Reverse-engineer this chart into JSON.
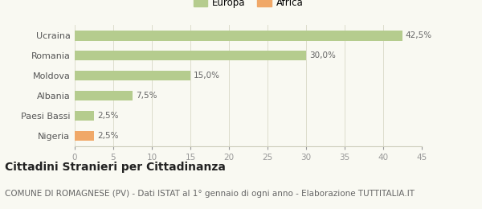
{
  "categories": [
    "Nigeria",
    "Paesi Bassi",
    "Albania",
    "Moldova",
    "Romania",
    "Ucraina"
  ],
  "values": [
    2.5,
    2.5,
    7.5,
    15.0,
    30.0,
    42.5
  ],
  "labels": [
    "2,5%",
    "2,5%",
    "7,5%",
    "15,0%",
    "30,0%",
    "42,5%"
  ],
  "colors": [
    "#f0a868",
    "#b5cc8e",
    "#b5cc8e",
    "#b5cc8e",
    "#b5cc8e",
    "#b5cc8e"
  ],
  "legend_items": [
    {
      "label": "Europa",
      "color": "#b5cc8e"
    },
    {
      "label": "Africa",
      "color": "#f0a868"
    }
  ],
  "xlim": [
    0,
    45
  ],
  "xticks": [
    0,
    5,
    10,
    15,
    20,
    25,
    30,
    35,
    40,
    45
  ],
  "title": "Cittadini Stranieri per Cittadinanza",
  "subtitle": "COMUNE DI ROMAGNESE (PV) - Dati ISTAT al 1° gennaio di ogni anno - Elaborazione TUTTITALIA.IT",
  "bg_color": "#f9f9f2",
  "title_fontsize": 10,
  "subtitle_fontsize": 7.5,
  "label_fontsize": 7.5,
  "tick_fontsize": 7.5,
  "bar_height": 0.5
}
